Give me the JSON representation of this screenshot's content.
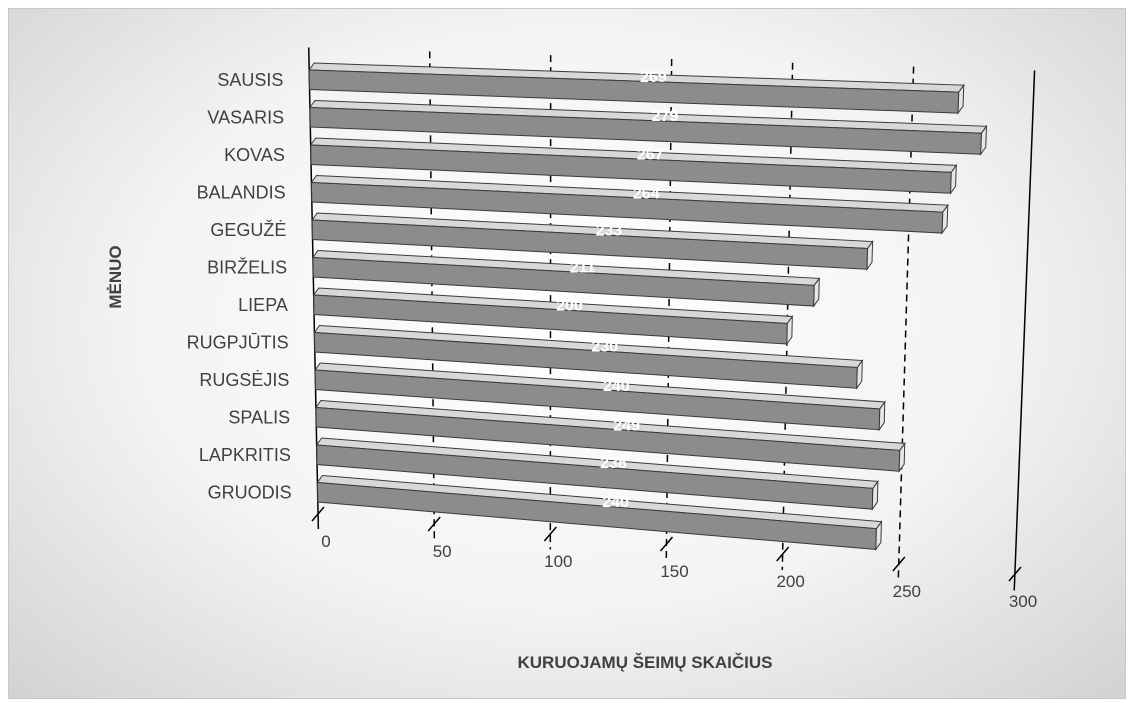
{
  "chart_data": {
    "type": "bar",
    "orientation": "horizontal",
    "style": "3d",
    "title": "",
    "xlabel": "KURUOJAMŲ ŠEIMŲ SKAIČIUS",
    "ylabel": "MĖNUO",
    "categories": [
      "SAUSIS",
      "VASARIS",
      "KOVAS",
      "BALANDIS",
      "GEGUŽĖ",
      "BIRŽELIS",
      "LIEPA",
      "RUGPJŪTIS",
      "RUGSĖJIS",
      "SPALIS",
      "LAPKRITIS",
      "GRUODIS"
    ],
    "values": [
      269,
      279,
      267,
      264,
      233,
      211,
      200,
      230,
      240,
      249,
      238,
      240
    ],
    "xlim": [
      0,
      300
    ],
    "xticks": [
      0,
      50,
      100,
      150,
      200,
      250,
      300
    ],
    "grid": true,
    "legend": "none",
    "bar_color": "#8c8c8c"
  }
}
